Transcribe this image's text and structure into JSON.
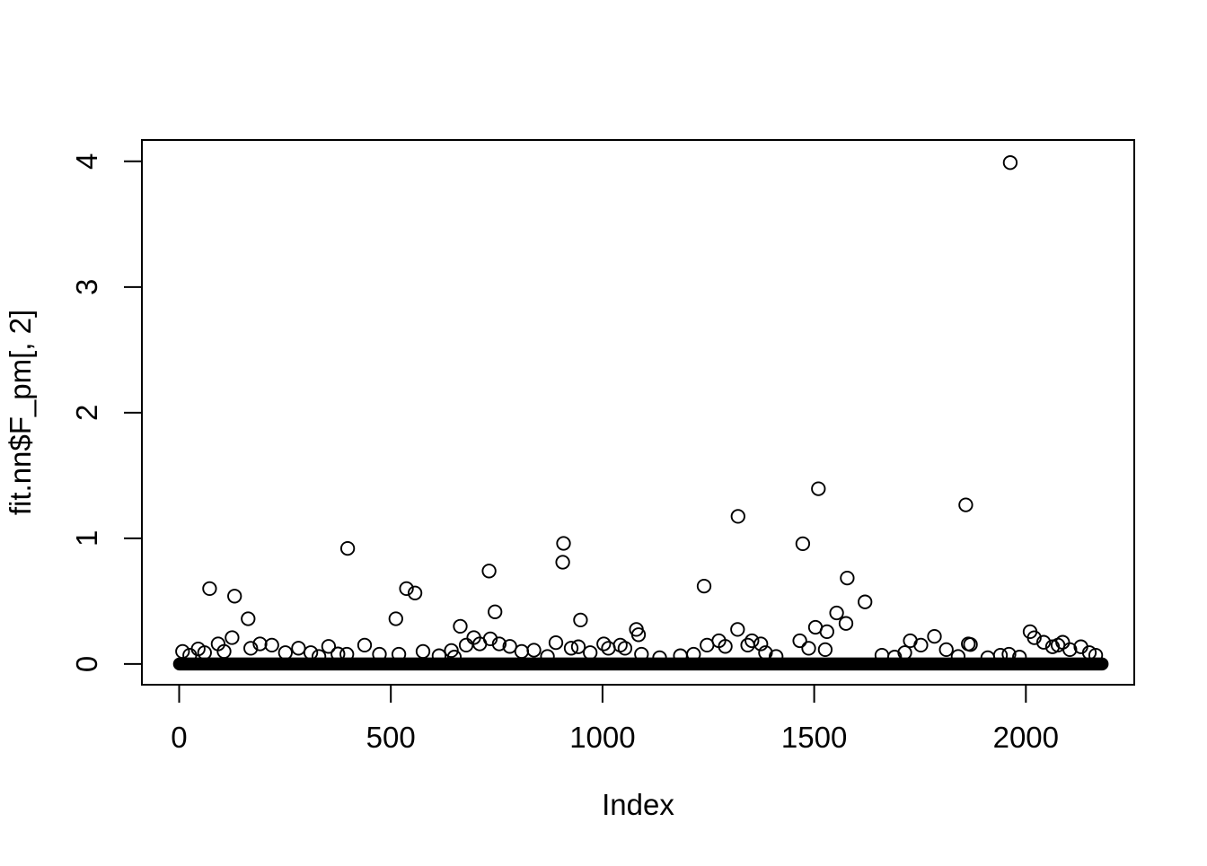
{
  "chart_data": {
    "type": "scatter",
    "title": "",
    "xlabel": "Index",
    "ylabel": "fit.nn$F_pm[, 2]",
    "x_ticks": [
      0,
      500,
      1000,
      1500,
      2000
    ],
    "y_ticks": [
      0,
      1,
      2,
      3,
      4
    ],
    "xlim": [
      -88,
      2256
    ],
    "ylim": [
      -0.165,
      4.17
    ],
    "grid": false,
    "legend": "none",
    "marker": "open-circle",
    "colors": {
      "foreground": "#000000",
      "background": "#FFFFFF"
    },
    "total_points_estimate": 2180,
    "baseline_band": {
      "note": "dense overplotted points near y=0 forming a solid black band",
      "x_start": 1,
      "x_end": 2180,
      "y": 0
    },
    "points": [
      [
        8,
        0.1
      ],
      [
        25,
        0.07
      ],
      [
        45,
        0.12
      ],
      [
        60,
        0.09
      ],
      [
        72,
        0.6
      ],
      [
        92,
        0.16
      ],
      [
        106,
        0.1
      ],
      [
        125,
        0.21
      ],
      [
        131,
        0.54
      ],
      [
        163,
        0.36
      ],
      [
        169,
        0.125
      ],
      [
        191,
        0.16
      ],
      [
        219,
        0.15
      ],
      [
        251,
        0.09
      ],
      [
        282,
        0.126
      ],
      [
        311,
        0.09
      ],
      [
        330,
        0.06
      ],
      [
        353,
        0.14
      ],
      [
        375,
        0.08
      ],
      [
        396,
        0.078
      ],
      [
        398,
        0.92
      ],
      [
        438,
        0.15
      ],
      [
        473,
        0.078
      ],
      [
        512,
        0.36
      ],
      [
        519,
        0.078
      ],
      [
        537,
        0.6
      ],
      [
        557,
        0.565
      ],
      [
        576,
        0.1
      ],
      [
        614,
        0.066
      ],
      [
        643,
        0.107
      ],
      [
        650,
        0.055
      ],
      [
        664,
        0.3
      ],
      [
        678,
        0.15
      ],
      [
        696,
        0.21
      ],
      [
        710,
        0.16
      ],
      [
        732,
        0.74
      ],
      [
        735,
        0.2
      ],
      [
        746,
        0.415
      ],
      [
        756,
        0.16
      ],
      [
        781,
        0.14
      ],
      [
        809,
        0.1
      ],
      [
        838,
        0.11
      ],
      [
        870,
        0.06
      ],
      [
        890,
        0.17
      ],
      [
        906,
        0.81
      ],
      [
        908,
        0.96
      ],
      [
        926,
        0.126
      ],
      [
        943,
        0.137
      ],
      [
        948,
        0.35
      ],
      [
        971,
        0.09
      ],
      [
        1003,
        0.16
      ],
      [
        1014,
        0.125
      ],
      [
        1042,
        0.15
      ],
      [
        1053,
        0.125
      ],
      [
        1080,
        0.275
      ],
      [
        1085,
        0.233
      ],
      [
        1092,
        0.078
      ],
      [
        1135,
        0.05
      ],
      [
        1184,
        0.066
      ],
      [
        1215,
        0.078
      ],
      [
        1240,
        0.62
      ],
      [
        1247,
        0.15
      ],
      [
        1275,
        0.185
      ],
      [
        1290,
        0.14
      ],
      [
        1319,
        0.275
      ],
      [
        1320,
        1.175
      ],
      [
        1343,
        0.15
      ],
      [
        1353,
        0.185
      ],
      [
        1374,
        0.16
      ],
      [
        1385,
        0.09
      ],
      [
        1410,
        0.06
      ],
      [
        1466,
        0.185
      ],
      [
        1473,
        0.957
      ],
      [
        1487,
        0.125
      ],
      [
        1503,
        0.292
      ],
      [
        1510,
        1.395
      ],
      [
        1526,
        0.114
      ],
      [
        1530,
        0.257
      ],
      [
        1553,
        0.406
      ],
      [
        1575,
        0.323
      ],
      [
        1578,
        0.684
      ],
      [
        1620,
        0.494
      ],
      [
        1660,
        0.07
      ],
      [
        1690,
        0.055
      ],
      [
        1714,
        0.09
      ],
      [
        1727,
        0.185
      ],
      [
        1752,
        0.15
      ],
      [
        1784,
        0.22
      ],
      [
        1812,
        0.114
      ],
      [
        1840,
        0.06
      ],
      [
        1858,
        1.266
      ],
      [
        1864,
        0.16
      ],
      [
        1869,
        0.155
      ],
      [
        1910,
        0.05
      ],
      [
        1940,
        0.07
      ],
      [
        1960,
        0.078
      ],
      [
        1963,
        3.99
      ],
      [
        1985,
        0.055
      ],
      [
        2010,
        0.257
      ],
      [
        2020,
        0.209
      ],
      [
        2042,
        0.173
      ],
      [
        2063,
        0.137
      ],
      [
        2076,
        0.15
      ],
      [
        2087,
        0.173
      ],
      [
        2104,
        0.114
      ],
      [
        2130,
        0.137
      ],
      [
        2150,
        0.09
      ],
      [
        2165,
        0.07
      ]
    ]
  }
}
